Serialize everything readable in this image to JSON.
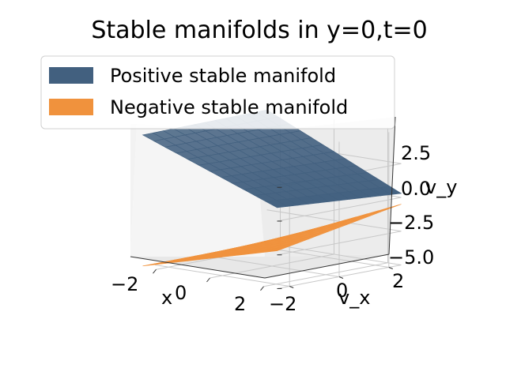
{
  "chart_data": {
    "type": "surface3d",
    "title": "Stable manifolds in y=0,t=0",
    "xlabel": "x",
    "ylabel": "v_x",
    "zlabel": "v_y",
    "x_ticks": [
      "−2",
      "0",
      "2"
    ],
    "y_ticks": [
      "−2",
      "0",
      "2"
    ],
    "z_ticks": [
      "2.5",
      "0.0",
      "−2.5",
      "−5.0"
    ],
    "xlim": [
      -2.5,
      2.5
    ],
    "ylim": [
      -2.5,
      2.5
    ],
    "zlim": [
      -5.0,
      5.0
    ],
    "grid": true,
    "legend_position": "upper-left",
    "series": [
      {
        "name": "Positive stable manifold",
        "color": "#42607f",
        "surface": {
          "x": [
            -2.5,
            2.5
          ],
          "y": [
            -2.5,
            2.5
          ],
          "z_at_xmin_ymin": 4.8,
          "z_at_xmax_ymin": 1.0,
          "z_at_xmin_ymax": 4.9,
          "z_at_xmax_ymax": 0.3
        }
      },
      {
        "name": "Negative stable manifold",
        "color": "#f0923d",
        "surface": {
          "x": [
            -2.5,
            2.5
          ],
          "y": [
            -2.5,
            2.5
          ],
          "z_at_xmin_ymin": -4.9,
          "z_at_xmax_ymin": -2.2,
          "z_at_xmin_ymax": -4.9,
          "z_at_xmax_ymax": -0.5
        }
      }
    ]
  }
}
